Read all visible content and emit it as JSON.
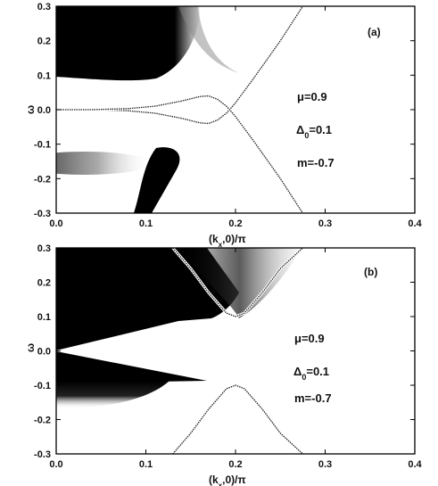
{
  "chart_data": [
    {
      "id": "a",
      "type": "heatmap",
      "panel_label": "(a)",
      "xlabel_main": "(k",
      "xlabel_sub": "x",
      "xlabel_tail": ",0)/π",
      "ylabel": "ω",
      "xlim": [
        0.0,
        0.4
      ],
      "ylim": [
        -0.3,
        0.3
      ],
      "xticks": [
        "0.0",
        "0.1",
        "0.2",
        "0.3",
        "0.4"
      ],
      "yticks": [
        "0.3",
        "0.2",
        "0.1",
        "0.0",
        "-0.1",
        "-0.2",
        "-0.3"
      ],
      "annotations": [
        "μ=0.9",
        "Δ",
        "0",
        "=0.1",
        "m=-0.7"
      ],
      "curves": [
        {
          "x": [
            0.0,
            0.04,
            0.08,
            0.11,
            0.14,
            0.16,
            0.17,
            0.18,
            0.19,
            0.2,
            0.22,
            0.25,
            0.275
          ],
          "y": [
            0.0,
            0.0,
            -0.003,
            -0.01,
            -0.025,
            -0.038,
            -0.04,
            -0.03,
            -0.01,
            0.02,
            0.09,
            0.2,
            0.3
          ]
        },
        {
          "x": [
            0.0,
            0.04,
            0.08,
            0.11,
            0.14,
            0.16,
            0.17,
            0.18,
            0.19,
            0.2,
            0.22,
            0.25,
            0.275
          ],
          "y": [
            0.0,
            0.0,
            0.003,
            0.01,
            0.025,
            0.038,
            0.04,
            0.03,
            0.01,
            -0.02,
            -0.09,
            -0.2,
            -0.3
          ]
        }
      ]
    },
    {
      "id": "b",
      "type": "heatmap",
      "panel_label": "(b)",
      "xlabel_main": "(k",
      "xlabel_sub": "x",
      "xlabel_tail": ",0)/π",
      "ylabel": "ω",
      "xlim": [
        0.0,
        0.4
      ],
      "ylim": [
        -0.3,
        0.3
      ],
      "xticks": [
        "0.0",
        "0.1",
        "0.2",
        "0.3",
        "0.4"
      ],
      "yticks": [
        "0.3",
        "0.2",
        "0.1",
        "0.0",
        "-0.1",
        "-0.2",
        "-0.3"
      ],
      "annotations": [
        "μ=0.9",
        "Δ",
        "0",
        "=0.1",
        "m=-0.7"
      ],
      "curves": [
        {
          "x": [
            0.13,
            0.15,
            0.17,
            0.19,
            0.2,
            0.21,
            0.23,
            0.25,
            0.275
          ],
          "y": [
            0.3,
            0.24,
            0.17,
            0.11,
            0.1,
            0.11,
            0.17,
            0.24,
            0.3
          ]
        },
        {
          "x": [
            0.13,
            0.15,
            0.17,
            0.19,
            0.2,
            0.21,
            0.23,
            0.25,
            0.275
          ],
          "y": [
            -0.3,
            -0.24,
            -0.17,
            -0.11,
            -0.1,
            -0.11,
            -0.17,
            -0.24,
            -0.3
          ]
        }
      ]
    }
  ]
}
